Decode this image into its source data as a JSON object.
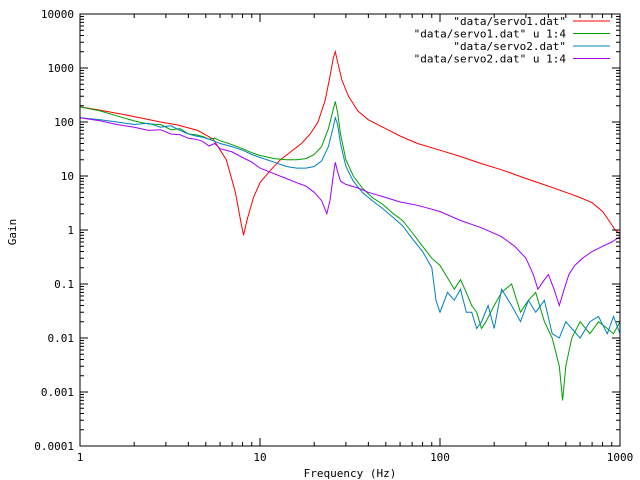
{
  "chart_data": {
    "type": "line",
    "xlabel": "Frequency (Hz)",
    "ylabel": "Gain",
    "xscale": "log",
    "yscale": "log",
    "xlim": [
      1,
      1000
    ],
    "ylim": [
      0.0001,
      10000
    ],
    "x_ticks": [
      1,
      10,
      100,
      1000
    ],
    "x_tick_labels": [
      "1",
      "10",
      "100",
      "1000"
    ],
    "y_ticks": [
      0.0001,
      0.001,
      0.01,
      0.1,
      1,
      10,
      100,
      1000,
      10000
    ],
    "y_tick_labels": [
      "0.0001",
      "0.001",
      "0.01",
      "0.1",
      "1",
      "10",
      "100",
      "1000",
      "10000"
    ],
    "grid": false,
    "legend_position": "top-right",
    "series": [
      {
        "name": "\"data/servo1.dat\"",
        "color": "#ff0000",
        "points": [
          [
            1,
            190
          ],
          [
            1.3,
            165
          ],
          [
            1.7,
            140
          ],
          [
            2.2,
            118
          ],
          [
            2.8,
            100
          ],
          [
            3.5,
            88
          ],
          [
            4.5,
            70
          ],
          [
            5.5,
            48
          ],
          [
            6.5,
            20
          ],
          [
            7.3,
            5
          ],
          [
            7.8,
            1.5
          ],
          [
            8.1,
            0.8
          ],
          [
            8.5,
            1.6
          ],
          [
            9.2,
            4
          ],
          [
            10,
            7.5
          ],
          [
            11.5,
            13
          ],
          [
            13,
            20
          ],
          [
            15,
            29
          ],
          [
            17,
            40
          ],
          [
            19,
            60
          ],
          [
            21,
            100
          ],
          [
            23,
            250
          ],
          [
            24.5,
            700
          ],
          [
            25.5,
            1500
          ],
          [
            26.2,
            2000
          ],
          [
            27,
            1300
          ],
          [
            28.5,
            600
          ],
          [
            31,
            300
          ],
          [
            35,
            160
          ],
          [
            40,
            110
          ],
          [
            50,
            75
          ],
          [
            60,
            55
          ],
          [
            75,
            40
          ],
          [
            100,
            30
          ],
          [
            130,
            23
          ],
          [
            170,
            17
          ],
          [
            220,
            13
          ],
          [
            300,
            9
          ],
          [
            400,
            6.5
          ],
          [
            500,
            5
          ],
          [
            600,
            4
          ],
          [
            700,
            3.2
          ],
          [
            800,
            2.2
          ],
          [
            880,
            1.4
          ],
          [
            940,
            1
          ],
          [
            1000,
            0.85
          ]
        ]
      },
      {
        "name": "\"data/servo1.dat\" u 1:4",
        "color": "#00a000",
        "points": [
          [
            1,
            190
          ],
          [
            1.3,
            160
          ],
          [
            1.6,
            130
          ],
          [
            2,
            105
          ],
          [
            2.4,
            92
          ],
          [
            2.8,
            90
          ],
          [
            3.2,
            72
          ],
          [
            3.6,
            75
          ],
          [
            4,
            60
          ],
          [
            4.4,
            58
          ],
          [
            4.8,
            54
          ],
          [
            5.2,
            48
          ],
          [
            5.6,
            50
          ],
          [
            6,
            45
          ],
          [
            7,
            38
          ],
          [
            8,
            32
          ],
          [
            9,
            27
          ],
          [
            10,
            24
          ],
          [
            12,
            21
          ],
          [
            14,
            20
          ],
          [
            16,
            20
          ],
          [
            18,
            21
          ],
          [
            20,
            25
          ],
          [
            22,
            35
          ],
          [
            24,
            75
          ],
          [
            25.5,
            170
          ],
          [
            26.2,
            240
          ],
          [
            27,
            150
          ],
          [
            28,
            60
          ],
          [
            30,
            20
          ],
          [
            33,
            10
          ],
          [
            37,
            6
          ],
          [
            42,
            4
          ],
          [
            48,
            3
          ],
          [
            55,
            2
          ],
          [
            62,
            1.5
          ],
          [
            70,
            0.9
          ],
          [
            80,
            0.5
          ],
          [
            90,
            0.3
          ],
          [
            100,
            0.22
          ],
          [
            110,
            0.13
          ],
          [
            120,
            0.08
          ],
          [
            130,
            0.12
          ],
          [
            140,
            0.07
          ],
          [
            150,
            0.04
          ],
          [
            160,
            0.03
          ],
          [
            170,
            0.015
          ],
          [
            180,
            0.02
          ],
          [
            200,
            0.04
          ],
          [
            220,
            0.07
          ],
          [
            250,
            0.1
          ],
          [
            280,
            0.03
          ],
          [
            310,
            0.05
          ],
          [
            340,
            0.07
          ],
          [
            380,
            0.02
          ],
          [
            420,
            0.01
          ],
          [
            460,
            0.003
          ],
          [
            480,
            0.0007
          ],
          [
            500,
            0.003
          ],
          [
            540,
            0.01
          ],
          [
            600,
            0.02
          ],
          [
            680,
            0.012
          ],
          [
            760,
            0.02
          ],
          [
            850,
            0.015
          ],
          [
            920,
            0.012
          ],
          [
            1000,
            0.02
          ]
        ]
      },
      {
        "name": "\"data/servo2.dat\"",
        "color": "#0080c0",
        "points": [
          [
            1,
            120
          ],
          [
            1.3,
            110
          ],
          [
            1.6,
            100
          ],
          [
            2,
            90
          ],
          [
            2.4,
            95
          ],
          [
            2.8,
            80
          ],
          [
            3.2,
            85
          ],
          [
            3.6,
            70
          ],
          [
            4,
            60
          ],
          [
            4.4,
            55
          ],
          [
            4.8,
            52
          ],
          [
            5.2,
            48
          ],
          [
            5.6,
            44
          ],
          [
            6,
            40
          ],
          [
            7,
            35
          ],
          [
            8,
            30
          ],
          [
            9,
            25
          ],
          [
            10,
            22
          ],
          [
            12,
            18
          ],
          [
            14,
            15
          ],
          [
            16,
            14
          ],
          [
            18,
            14
          ],
          [
            20,
            15
          ],
          [
            22,
            19
          ],
          [
            24,
            35
          ],
          [
            25.5,
            80
          ],
          [
            26.2,
            120
          ],
          [
            27,
            90
          ],
          [
            28,
            40
          ],
          [
            30,
            15
          ],
          [
            33,
            8
          ],
          [
            37,
            5
          ],
          [
            42,
            3.5
          ],
          [
            48,
            2.5
          ],
          [
            55,
            1.7
          ],
          [
            62,
            1.2
          ],
          [
            70,
            0.7
          ],
          [
            80,
            0.4
          ],
          [
            90,
            0.2
          ],
          [
            95,
            0.05
          ],
          [
            100,
            0.03
          ],
          [
            110,
            0.07
          ],
          [
            120,
            0.05
          ],
          [
            130,
            0.08
          ],
          [
            140,
            0.03
          ],
          [
            150,
            0.03
          ],
          [
            160,
            0.015
          ],
          [
            170,
            0.02
          ],
          [
            185,
            0.04
          ],
          [
            200,
            0.015
          ],
          [
            220,
            0.08
          ],
          [
            250,
            0.04
          ],
          [
            280,
            0.02
          ],
          [
            310,
            0.05
          ],
          [
            340,
            0.03
          ],
          [
            380,
            0.05
          ],
          [
            420,
            0.012
          ],
          [
            460,
            0.01
          ],
          [
            500,
            0.02
          ],
          [
            540,
            0.015
          ],
          [
            600,
            0.01
          ],
          [
            680,
            0.02
          ],
          [
            760,
            0.025
          ],
          [
            850,
            0.012
          ],
          [
            920,
            0.025
          ],
          [
            1000,
            0.012
          ]
        ]
      },
      {
        "name": "\"data/servo2.dat\" u 1:4",
        "color": "#a000ff",
        "points": [
          [
            1,
            120
          ],
          [
            1.3,
            105
          ],
          [
            1.6,
            90
          ],
          [
            2,
            80
          ],
          [
            2.4,
            70
          ],
          [
            2.8,
            72
          ],
          [
            3.2,
            60
          ],
          [
            3.6,
            58
          ],
          [
            4,
            50
          ],
          [
            4.4,
            48
          ],
          [
            4.8,
            44
          ],
          [
            5.2,
            36
          ],
          [
            5.6,
            40
          ],
          [
            6,
            32
          ],
          [
            7,
            28
          ],
          [
            8,
            22
          ],
          [
            9,
            18
          ],
          [
            10,
            14
          ],
          [
            12,
            11
          ],
          [
            14,
            9
          ],
          [
            16,
            7.5
          ],
          [
            18,
            6.5
          ],
          [
            20,
            5
          ],
          [
            22,
            3.5
          ],
          [
            23.5,
            2
          ],
          [
            24.5,
            3.5
          ],
          [
            25.5,
            10
          ],
          [
            26.2,
            18
          ],
          [
            27,
            12
          ],
          [
            28,
            8
          ],
          [
            30,
            7
          ],
          [
            35,
            6
          ],
          [
            40,
            5
          ],
          [
            50,
            4
          ],
          [
            60,
            3.3
          ],
          [
            70,
            3
          ],
          [
            80,
            2.7
          ],
          [
            100,
            2.2
          ],
          [
            130,
            1.5
          ],
          [
            170,
            1.1
          ],
          [
            220,
            0.75
          ],
          [
            260,
            0.5
          ],
          [
            300,
            0.3
          ],
          [
            330,
            0.15
          ],
          [
            350,
            0.08
          ],
          [
            380,
            0.12
          ],
          [
            400,
            0.15
          ],
          [
            430,
            0.08
          ],
          [
            460,
            0.04
          ],
          [
            490,
            0.08
          ],
          [
            520,
            0.15
          ],
          [
            560,
            0.22
          ],
          [
            620,
            0.3
          ],
          [
            700,
            0.4
          ],
          [
            800,
            0.5
          ],
          [
            900,
            0.6
          ],
          [
            1000,
            0.75
          ]
        ]
      }
    ]
  }
}
